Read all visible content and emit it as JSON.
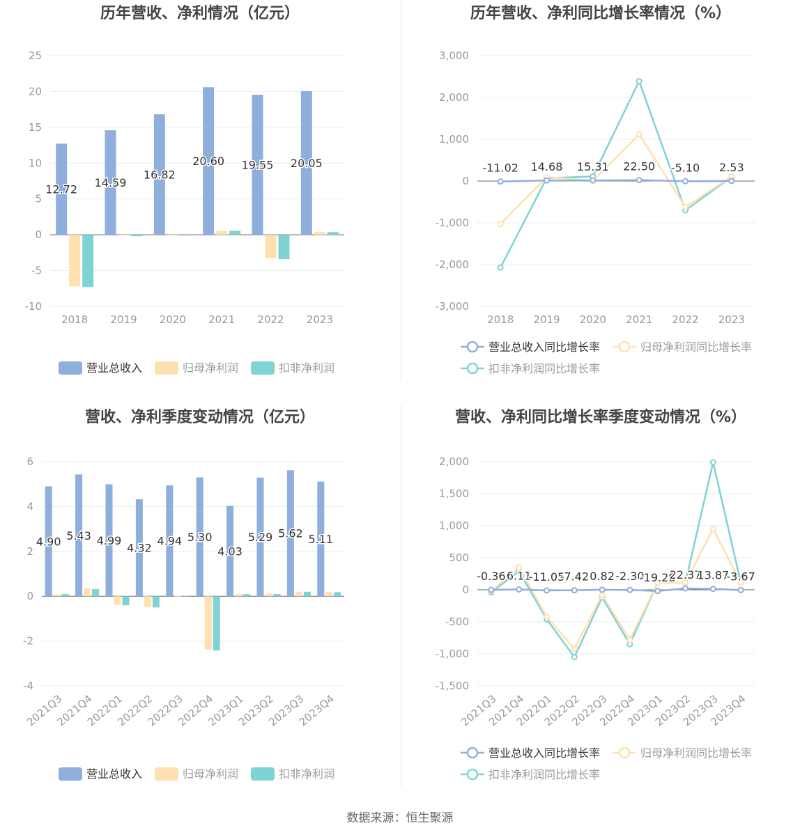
{
  "footer": {
    "source": "数据来源：恒生聚源"
  },
  "colors": {
    "revenue": "#8EAEDB",
    "net_profit": "#FFE0B0",
    "net_profit_deducted": "#7ED3D3",
    "grid": "#e8ecf2",
    "axis": "#999999"
  },
  "chart_data": [
    {
      "type": "bar",
      "title": "历年营收、净利情况（亿元）",
      "categories": [
        "2018",
        "2019",
        "2020",
        "2021",
        "2022",
        "2023"
      ],
      "yticks": [
        "25",
        "20",
        "15",
        "10",
        "5",
        "0",
        "-5",
        "-10"
      ],
      "ylim": [
        -10,
        25
      ],
      "series": [
        {
          "name": "营业总收入",
          "values": [
            12.72,
            14.59,
            16.82,
            20.6,
            19.55,
            20.05
          ],
          "labels": [
            "12.72",
            "14.59",
            "16.82",
            "20.60",
            "19.55",
            "20.05"
          ]
        },
        {
          "name": "归母净利润",
          "values": [
            -7.2,
            -0.05,
            -0.02,
            0.55,
            -3.3,
            0.42
          ]
        },
        {
          "name": "扣非净利润",
          "values": [
            -7.3,
            -0.2,
            -0.1,
            0.55,
            -3.4,
            0.38
          ]
        }
      ],
      "legend": "bottom"
    },
    {
      "type": "line",
      "title": "历年营收、净利同比增长率情况（%）",
      "categories": [
        "2018",
        "2019",
        "2020",
        "2021",
        "2022",
        "2023"
      ],
      "yticks": [
        "3,000",
        "2,000",
        "1,000",
        "0",
        "-1,000",
        "-2,000",
        "-3,000"
      ],
      "ylim": [
        -3000,
        3000
      ],
      "series": [
        {
          "name": "营业总收入同比增长率",
          "values": [
            -11.02,
            14.68,
            15.31,
            22.5,
            -5.1,
            2.53
          ],
          "labels": [
            "-11.02",
            "14.68",
            "15.31",
            "22.50",
            "-5.10",
            "2.53"
          ]
        },
        {
          "name": "归母净利润同比增长率",
          "values": [
            -1030,
            95,
            10,
            1120,
            -620,
            110
          ]
        },
        {
          "name": "扣非净利润同比增长率",
          "values": [
            -2070,
            70,
            110,
            2390,
            -700,
            100
          ]
        }
      ],
      "legend": "bottom"
    },
    {
      "type": "bar",
      "title": "营收、净利季度变动情况（亿元）",
      "categories": [
        "2021Q3",
        "2021Q4",
        "2022Q1",
        "2022Q2",
        "2022Q3",
        "2022Q4",
        "2023Q1",
        "2023Q2",
        "2023Q3",
        "2023Q4"
      ],
      "yticks": [
        "6",
        "4",
        "2",
        "0",
        "-2",
        "-4"
      ],
      "ylim": [
        -4,
        6
      ],
      "series": [
        {
          "name": "营业总收入",
          "values": [
            4.9,
            5.43,
            4.99,
            4.32,
            4.94,
            5.3,
            4.03,
            5.29,
            5.62,
            5.11
          ],
          "labels": [
            "4.90",
            "5.43",
            "4.99",
            "4.32",
            "4.94",
            "5.30",
            "4.03",
            "5.29",
            "5.62",
            "5.11"
          ]
        },
        {
          "name": "归母净利润",
          "values": [
            0.08,
            0.35,
            -0.38,
            -0.48,
            0.02,
            -2.38,
            0.1,
            0.12,
            0.2,
            0.18
          ]
        },
        {
          "name": "扣非净利润",
          "values": [
            0.1,
            0.32,
            -0.4,
            -0.5,
            -0.03,
            -2.42,
            0.09,
            0.1,
            0.2,
            0.18
          ]
        }
      ],
      "legend": "bottom"
    },
    {
      "type": "line",
      "title": "营收、净利同比增长率季度变动情况（%）",
      "categories": [
        "2021Q3",
        "2021Q4",
        "2022Q1",
        "2022Q2",
        "2022Q3",
        "2022Q4",
        "2023Q1",
        "2023Q2",
        "2023Q3",
        "2023Q4"
      ],
      "yticks": [
        "2,000",
        "1,500",
        "1,000",
        "500",
        "0",
        "-500",
        "-1,000",
        "-1,500"
      ],
      "ylim": [
        -1500,
        2000
      ],
      "series": [
        {
          "name": "营业总收入同比增长率",
          "values": [
            -0.36,
            6.11,
            -11.05,
            -7.42,
            0.82,
            -2.3,
            -19.28,
            22.37,
            13.87,
            -3.67
          ],
          "labels": [
            "-0.36",
            "6.11",
            "-11.05",
            "-7.42",
            "0.82",
            "-2.30",
            "-19.28",
            "22.37",
            "13.87",
            "-3.67"
          ]
        },
        {
          "name": "归母净利润同比增长率",
          "values": [
            -20,
            350,
            -420,
            -920,
            -80,
            -780,
            110,
            110,
            950,
            110
          ]
        },
        {
          "name": "扣非净利润同比增长率",
          "values": [
            -40,
            290,
            -460,
            -1050,
            -120,
            -850,
            110,
            110,
            1990,
            110
          ]
        }
      ],
      "legend": "bottom"
    }
  ]
}
